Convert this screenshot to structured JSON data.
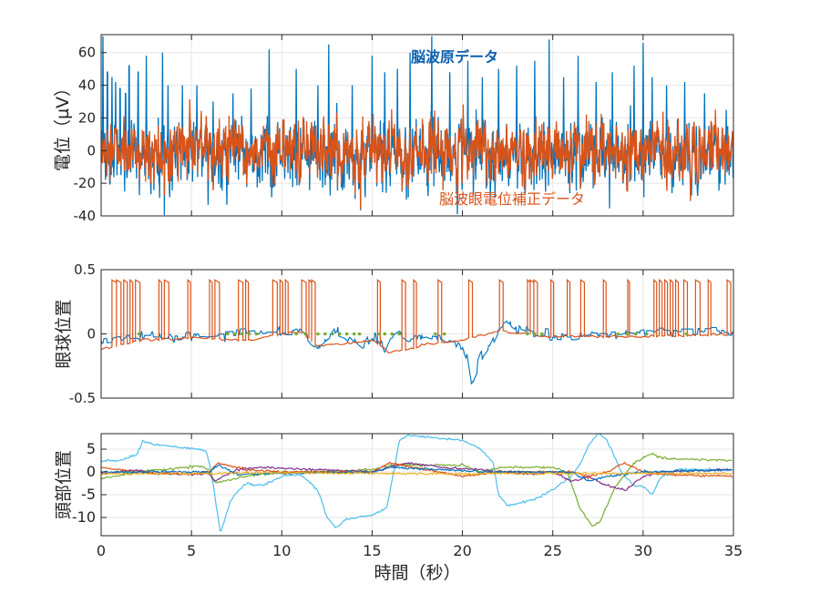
{
  "chart_data": [
    {
      "type": "line",
      "title": "",
      "ylabel": "電位（µV）",
      "xlabel": "",
      "xlim": [
        0,
        35
      ],
      "ylim": [
        -40,
        71
      ],
      "yticks": [
        -40,
        -20,
        0,
        20,
        40,
        60
      ],
      "xticks": [
        0,
        5,
        10,
        15,
        20,
        25,
        30,
        35
      ],
      "grid": true,
      "annotations": [
        {
          "text": "脳波原データ",
          "color": "#0c5fb0",
          "series": "raw"
        },
        {
          "text": "脳波眼電位補正データ",
          "color": "#d95319",
          "series": "corrected"
        }
      ],
      "series": [
        {
          "name": "脳波原データ",
          "color": "#0072bd",
          "noise_std": 12,
          "sample_rate": 50,
          "spikes": [
            [
              0.1,
              70
            ],
            [
              0.35,
              48
            ],
            [
              0.6,
              45
            ],
            [
              0.8,
              42
            ],
            [
              1.05,
              38
            ],
            [
              1.35,
              35
            ],
            [
              1.55,
              52
            ],
            [
              2.05,
              48
            ],
            [
              2.5,
              58
            ],
            [
              3.4,
              60
            ],
            [
              3.7,
              40
            ],
            [
              4.5,
              40
            ],
            [
              5.3,
              40
            ],
            [
              6.2,
              30
            ],
            [
              7.3,
              35
            ],
            [
              8.3,
              38
            ],
            [
              9.3,
              62
            ],
            [
              10.8,
              50
            ],
            [
              12.0,
              40
            ],
            [
              12.6,
              65
            ],
            [
              13.9,
              40
            ],
            [
              15.0,
              58
            ],
            [
              15.7,
              48
            ],
            [
              16.4,
              50
            ],
            [
              17.1,
              60
            ],
            [
              18.3,
              70
            ],
            [
              19.3,
              48
            ],
            [
              20.3,
              55
            ],
            [
              21.1,
              45
            ],
            [
              22.0,
              50
            ],
            [
              23.0,
              52
            ],
            [
              24.0,
              55
            ],
            [
              24.8,
              68
            ],
            [
              25.6,
              45
            ],
            [
              26.4,
              58
            ],
            [
              27.4,
              42
            ],
            [
              28.3,
              48
            ],
            [
              29.5,
              52
            ],
            [
              30.0,
              66
            ],
            [
              30.5,
              45
            ],
            [
              31.3,
              40
            ],
            [
              32.3,
              42
            ],
            [
              33.4,
              35
            ],
            [
              34.6,
              25
            ]
          ]
        },
        {
          "name": "脳波眼電位補正データ",
          "color": "#d95319",
          "noise_std": 11,
          "sample_rate": 50,
          "spikes": []
        }
      ]
    },
    {
      "type": "line",
      "ylabel": "眼球位置",
      "xlim": [
        0,
        35
      ],
      "ylim": [
        -0.5,
        0.5
      ],
      "yticks": [
        -0.5,
        0,
        0.5
      ],
      "xticks": [
        0,
        5,
        10,
        15,
        20,
        25,
        30,
        35
      ],
      "grid": true,
      "series": [
        {
          "name": "blue",
          "color": "#0072bd",
          "points": [
            [
              0,
              -0.05
            ],
            [
              1,
              -0.03
            ],
            [
              5,
              -0.02
            ],
            [
              7,
              0
            ],
            [
              10,
              0.02
            ],
            [
              11,
              0.02
            ],
            [
              11.5,
              -0.05
            ],
            [
              12,
              -0.1
            ],
            [
              12.5,
              -0.05
            ],
            [
              13,
              0.05
            ],
            [
              13.5,
              0.02
            ],
            [
              14,
              -0.05
            ],
            [
              14.5,
              -0.1
            ],
            [
              15,
              0
            ],
            [
              15.3,
              -0.05
            ],
            [
              15.7,
              -0.15
            ],
            [
              16,
              -0.05
            ],
            [
              16.5,
              0.02
            ],
            [
              17,
              -0.03
            ],
            [
              18,
              0
            ],
            [
              19,
              -0.05
            ],
            [
              20,
              -0.1
            ],
            [
              20.3,
              -0.2
            ],
            [
              20.5,
              -0.4
            ],
            [
              21,
              -0.2
            ],
            [
              21.5,
              -0.1
            ],
            [
              22,
              0.05
            ],
            [
              22.5,
              0.1
            ],
            [
              23,
              0.05
            ],
            [
              24,
              0
            ],
            [
              25,
              -0.02
            ],
            [
              28,
              0
            ],
            [
              30,
              0.02
            ],
            [
              35,
              0.02
            ]
          ]
        },
        {
          "name": "orange",
          "color": "#d95319",
          "pulse_level": 0.42,
          "pulse_width": 0.25,
          "pulses": [
            0.6,
            0.85,
            1.2,
            1.5,
            1.9,
            3.1,
            3.5,
            4.7,
            5.9,
            6.3,
            7.6,
            7.9,
            9.5,
            9.8,
            10.1,
            11.1,
            11.4,
            11.6,
            15.2,
            16.6,
            17.2,
            18.6,
            20.3,
            22.0,
            23.5,
            23.7,
            23.9,
            24.8,
            25.7,
            26.5,
            27.7,
            29.0,
            30.5,
            30.8,
            31.1,
            31.4,
            31.7,
            32.2,
            32.9,
            33.5,
            34.6
          ],
          "baseline": [
            [
              0,
              -0.12
            ],
            [
              2,
              -0.05
            ],
            [
              5,
              -0.03
            ],
            [
              8,
              -0.05
            ],
            [
              11,
              0.02
            ],
            [
              12,
              -0.1
            ],
            [
              15,
              -0.05
            ],
            [
              16,
              -0.15
            ],
            [
              18,
              -0.08
            ],
            [
              20,
              -0.05
            ],
            [
              22,
              0.02
            ],
            [
              25,
              -0.02
            ],
            [
              30,
              -0.02
            ],
            [
              35,
              0
            ]
          ]
        },
        {
          "name": "green",
          "color": "#77ac30",
          "markers": [
            2.1,
            7.0,
            7.4,
            7.8,
            8.2,
            8.6,
            10.8,
            11.3,
            12.0,
            12.4,
            12.8,
            13.2,
            13.6,
            14.0,
            14.3,
            15.4,
            15.7,
            16.1,
            16.5,
            18.5,
            19.0,
            23.6,
            24.0,
            24.4,
            28.6,
            29.1,
            29.6,
            30.2,
            32.4
          ]
        }
      ]
    },
    {
      "type": "line",
      "ylabel": "頭部位置",
      "xlabel": "時間（秒）",
      "xlim": [
        0,
        35
      ],
      "ylim": [
        -14,
        8.4
      ],
      "yticks": [
        -10,
        -5,
        0,
        5
      ],
      "xticks": [
        0,
        5,
        10,
        15,
        20,
        25,
        30,
        35
      ],
      "xticklabels": [
        "0",
        "5",
        "10",
        "15",
        "20",
        "25",
        "30",
        "35"
      ],
      "grid": true,
      "series": [
        {
          "name": "light-blue",
          "color": "#4dbeee",
          "points": [
            [
              0,
              2.5
            ],
            [
              1,
              2.5
            ],
            [
              2,
              3.8
            ],
            [
              2.3,
              6.7
            ],
            [
              3,
              6
            ],
            [
              5,
              5.2
            ],
            [
              5.8,
              4.8
            ],
            [
              6.1,
              0
            ],
            [
              6.6,
              -13.5
            ],
            [
              7.2,
              -6
            ],
            [
              8,
              -2.5
            ],
            [
              9,
              -3
            ],
            [
              10,
              -1
            ],
            [
              11,
              -0.5
            ],
            [
              12,
              -4
            ],
            [
              12.5,
              -10
            ],
            [
              13,
              -12.3
            ],
            [
              13.5,
              -10.5
            ],
            [
              15,
              -9.5
            ],
            [
              15.8,
              -8
            ],
            [
              16.2,
              0
            ],
            [
              16.5,
              7
            ],
            [
              17,
              8
            ],
            [
              20,
              7
            ],
            [
              21,
              5
            ],
            [
              21.7,
              2
            ],
            [
              22,
              -5
            ],
            [
              22.5,
              -7.5
            ],
            [
              24,
              -6
            ],
            [
              25,
              -4
            ],
            [
              26,
              -1
            ],
            [
              26.5,
              1.5
            ],
            [
              27,
              6
            ],
            [
              27.5,
              8.5
            ],
            [
              28,
              7
            ],
            [
              28.8,
              0
            ],
            [
              29.5,
              -3
            ],
            [
              30,
              -3
            ],
            [
              30.5,
              -5
            ],
            [
              31,
              -1
            ],
            [
              32,
              0.5
            ],
            [
              35,
              0.5
            ]
          ]
        },
        {
          "name": "green",
          "color": "#77ac30",
          "points": [
            [
              0,
              -1.5
            ],
            [
              2,
              0
            ],
            [
              5.5,
              1.3
            ],
            [
              6,
              0.5
            ],
            [
              6.3,
              -2.5
            ],
            [
              8,
              -1
            ],
            [
              10,
              0
            ],
            [
              12,
              0
            ],
            [
              15,
              0.5
            ],
            [
              16,
              1.5
            ],
            [
              20,
              1.5
            ],
            [
              21,
              0
            ],
            [
              22,
              1
            ],
            [
              25,
              1
            ],
            [
              25.8,
              0
            ],
            [
              26.5,
              -8
            ],
            [
              27.2,
              -12
            ],
            [
              27.6,
              -11
            ],
            [
              28.5,
              -3
            ],
            [
              29.5,
              2
            ],
            [
              30.5,
              4
            ],
            [
              31,
              3
            ],
            [
              35,
              2.5
            ]
          ]
        },
        {
          "name": "purple",
          "color": "#7e2f8e",
          "points": [
            [
              0,
              -0.5
            ],
            [
              2,
              0.5
            ],
            [
              3,
              -0.5
            ],
            [
              6,
              -0.5
            ],
            [
              6.3,
              -2
            ],
            [
              7.5,
              0.5
            ],
            [
              9,
              1
            ],
            [
              12,
              0.5
            ],
            [
              15,
              0
            ],
            [
              17,
              2
            ],
            [
              19,
              1
            ],
            [
              21,
              0.5
            ],
            [
              22,
              0
            ],
            [
              24,
              -0.5
            ],
            [
              25,
              0
            ],
            [
              26,
              -2
            ],
            [
              27,
              -1
            ],
            [
              28,
              -3
            ],
            [
              29,
              -4
            ],
            [
              30,
              -1
            ],
            [
              31,
              0
            ],
            [
              35,
              0.5
            ]
          ]
        },
        {
          "name": "orange",
          "color": "#d95319",
          "points": [
            [
              0,
              1
            ],
            [
              2,
              0
            ],
            [
              5,
              -0.5
            ],
            [
              6,
              0
            ],
            [
              6.5,
              2
            ],
            [
              8,
              0.5
            ],
            [
              10,
              0
            ],
            [
              15,
              0
            ],
            [
              16,
              2
            ],
            [
              20,
              -1
            ],
            [
              22,
              0
            ],
            [
              26,
              0
            ],
            [
              27,
              -1
            ],
            [
              28,
              0
            ],
            [
              29,
              2
            ],
            [
              30,
              0
            ],
            [
              31,
              -0.5
            ],
            [
              35,
              -1
            ]
          ]
        },
        {
          "name": "blue",
          "color": "#0072bd",
          "points": [
            [
              0,
              0
            ],
            [
              6,
              0
            ],
            [
              6.5,
              1.5
            ],
            [
              7.5,
              -0.5
            ],
            [
              15,
              0
            ],
            [
              16,
              1
            ],
            [
              21,
              0
            ],
            [
              26,
              0
            ],
            [
              27,
              -2
            ],
            [
              28,
              -1
            ],
            [
              30,
              0
            ],
            [
              35,
              0.5
            ]
          ]
        },
        {
          "name": "yellow",
          "color": "#edb120",
          "points": [
            [
              0,
              -0.5
            ],
            [
              10,
              -0.2
            ],
            [
              20,
              -0.4
            ],
            [
              35,
              -0.3
            ]
          ]
        }
      ]
    }
  ]
}
